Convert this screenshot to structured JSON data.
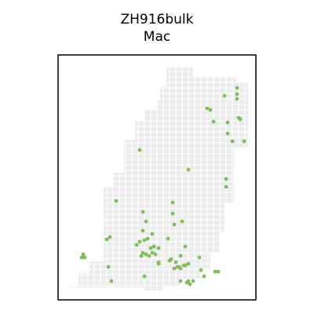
{
  "chart_data": {
    "type": "scatter",
    "title": "ZH916bulk",
    "subtitle": "Mac",
    "xlabel": "",
    "ylabel": "",
    "grid": false,
    "legend": "none",
    "colors": {
      "tissue": "#ebebeb",
      "point": "#82bc5c",
      "frame": "#000000"
    },
    "xlim": [
      0,
      252
    ],
    "ylim": [
      0,
      312
    ],
    "tissue_outline": [
      [
        12,
        295
      ],
      [
        26,
        295
      ],
      [
        26,
        278
      ],
      [
        40,
        278
      ],
      [
        40,
        263
      ],
      [
        58,
        263
      ],
      [
        58,
        168
      ],
      [
        70,
        168
      ],
      [
        70,
        150
      ],
      [
        84,
        150
      ],
      [
        84,
        108
      ],
      [
        98,
        108
      ],
      [
        98,
        84
      ],
      [
        110,
        84
      ],
      [
        110,
        70
      ],
      [
        126,
        70
      ],
      [
        126,
        58
      ],
      [
        130,
        58
      ],
      [
        130,
        40
      ],
      [
        138,
        40
      ],
      [
        138,
        16
      ],
      [
        172,
        16
      ],
      [
        172,
        28
      ],
      [
        226,
        28
      ],
      [
        226,
        35
      ],
      [
        242,
        35
      ],
      [
        242,
        118
      ],
      [
        224,
        118
      ],
      [
        224,
        188
      ],
      [
        212,
        188
      ],
      [
        212,
        226
      ],
      [
        206,
        226
      ],
      [
        206,
        252
      ],
      [
        194,
        252
      ],
      [
        194,
        272
      ],
      [
        182,
        272
      ],
      [
        182,
        285
      ],
      [
        155,
        285
      ],
      [
        155,
        295
      ],
      [
        135,
        295
      ],
      [
        135,
        300
      ],
      [
        110,
        300
      ],
      [
        110,
        296
      ],
      [
        12,
        296
      ]
    ],
    "points": [
      [
        228,
        42
      ],
      [
        212,
        52
      ],
      [
        228,
        50
      ],
      [
        228,
        56
      ],
      [
        190,
        68
      ],
      [
        194,
        70
      ],
      [
        198,
        85
      ],
      [
        216,
        86
      ],
      [
        230,
        80
      ],
      [
        232,
        82
      ],
      [
        216,
        100
      ],
      [
        237,
        110
      ],
      [
        222,
        110
      ],
      [
        104,
        121
      ],
      [
        166,
        146
      ],
      [
        214,
        158
      ],
      [
        214,
        168
      ],
      [
        74,
        186
      ],
      [
        146,
        188
      ],
      [
        108,
        200
      ],
      [
        146,
        202
      ],
      [
        112,
        212
      ],
      [
        158,
        212
      ],
      [
        148,
        216
      ],
      [
        108,
        224
      ],
      [
        120,
        228
      ],
      [
        62,
        235
      ],
      [
        66,
        232
      ],
      [
        140,
        234
      ],
      [
        110,
        236
      ],
      [
        114,
        234
      ],
      [
        104,
        238
      ],
      [
        100,
        242
      ],
      [
        122,
        244
      ],
      [
        128,
        246
      ],
      [
        162,
        244
      ],
      [
        118,
        246
      ],
      [
        108,
        252
      ],
      [
        112,
        254
      ],
      [
        106,
        256
      ],
      [
        116,
        256
      ],
      [
        120,
        252
      ],
      [
        124,
        254
      ],
      [
        156,
        256
      ],
      [
        180,
        258
      ],
      [
        32,
        254
      ],
      [
        34,
        258
      ],
      [
        30,
        258
      ],
      [
        128,
        266
      ],
      [
        144,
        260
      ],
      [
        150,
        264
      ],
      [
        142,
        262
      ],
      [
        152,
        270
      ],
      [
        160,
        268
      ],
      [
        154,
        270
      ],
      [
        156,
        272
      ],
      [
        162,
        268
      ],
      [
        166,
        266
      ],
      [
        148,
        272
      ],
      [
        64,
        270
      ],
      [
        128,
        264
      ],
      [
        182,
        274
      ],
      [
        204,
        276
      ],
      [
        110,
        282
      ],
      [
        156,
        288
      ],
      [
        166,
        288
      ],
      [
        172,
        288
      ],
      [
        164,
        290
      ],
      [
        168,
        292
      ],
      [
        68,
        288
      ],
      [
        186,
        282
      ],
      [
        200,
        276
      ]
    ]
  }
}
